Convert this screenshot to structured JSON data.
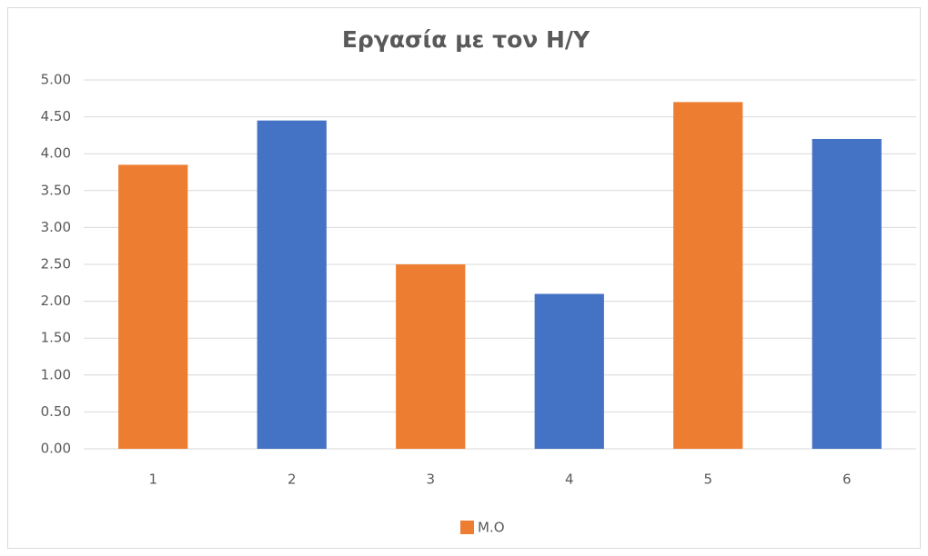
{
  "chart_data": {
    "type": "bar",
    "title": "Εργασία με τον Η/Υ",
    "categories": [
      "1",
      "2",
      "3",
      "4",
      "5",
      "6"
    ],
    "series": [
      {
        "name": "Μ.Ο",
        "color": "#ed7d31",
        "values": [
          3.85,
          4.45,
          2.5,
          2.1,
          4.7,
          4.2
        ]
      }
    ],
    "bar_colors": [
      "#ed7d31",
      "#4472c4",
      "#ed7d31",
      "#4472c4",
      "#ed7d31",
      "#4472c4"
    ],
    "ylim": [
      0,
      5
    ],
    "yticks": [
      {
        "value": 0,
        "label": "0.00"
      },
      {
        "value": 0.5,
        "label": "0.50"
      },
      {
        "value": 1,
        "label": "1.00"
      },
      {
        "value": 1.5,
        "label": "1.50"
      },
      {
        "value": 2,
        "label": "2.00"
      },
      {
        "value": 2.5,
        "label": "2.50"
      },
      {
        "value": 3,
        "label": "3.00"
      },
      {
        "value": 3.5,
        "label": "3.50"
      },
      {
        "value": 4,
        "label": "4.00"
      },
      {
        "value": 4.5,
        "label": "4.50"
      },
      {
        "value": 5,
        "label": "5.00"
      }
    ],
    "grid": true,
    "legend": "bottom"
  }
}
